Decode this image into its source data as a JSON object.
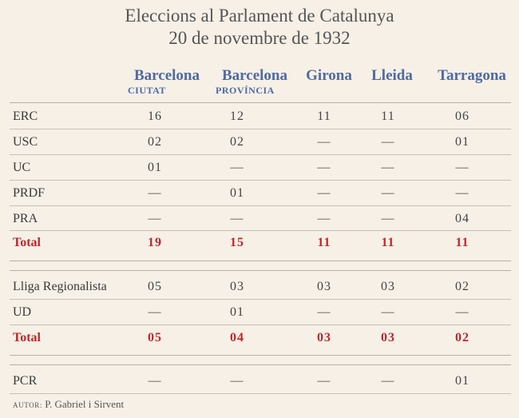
{
  "title": {
    "line1": "Eleccions al Parlament de Catalunya",
    "line2": "20 de novembre de 1932"
  },
  "columns": [
    {
      "name": "Barcelona",
      "sub": "CIUTAT"
    },
    {
      "name": "Barcelona",
      "sub": "PROVÍNCIA"
    },
    {
      "name": "Girona",
      "sub": ""
    },
    {
      "name": "Lleida",
      "sub": ""
    },
    {
      "name": "Tarragona",
      "sub": ""
    }
  ],
  "group1": {
    "rows": [
      {
        "party": "ERC",
        "values": [
          "16",
          "12",
          "11",
          "11",
          "06"
        ]
      },
      {
        "party": "USC",
        "values": [
          "02",
          "02",
          "—",
          "—",
          "01"
        ]
      },
      {
        "party": "UC",
        "values": [
          "01",
          "—",
          "—",
          "—",
          "—"
        ]
      },
      {
        "party": "PRDF",
        "values": [
          "—",
          "01",
          "—",
          "—",
          "—"
        ]
      },
      {
        "party": "PRA",
        "values": [
          "—",
          "—",
          "—",
          "—",
          "04"
        ]
      }
    ],
    "total": {
      "label": "Total",
      "values": [
        "19",
        "15",
        "11",
        "11",
        "11"
      ]
    }
  },
  "group2": {
    "rows": [
      {
        "party": "Lliga Regionalista",
        "values": [
          "05",
          "03",
          "03",
          "03",
          "02"
        ]
      },
      {
        "party": "UD",
        "values": [
          "—",
          "01",
          "—",
          "—",
          "—"
        ]
      }
    ],
    "total": {
      "label": "Total",
      "values": [
        "05",
        "04",
        "03",
        "03",
        "02"
      ]
    }
  },
  "group3": {
    "rows": [
      {
        "party": "PCR",
        "values": [
          "—",
          "—",
          "—",
          "—",
          "01"
        ]
      }
    ]
  },
  "footer": {
    "key": "AUTOR:",
    "author": "P. Gabriel i Sirvent"
  },
  "colors": {
    "background": "#f6f0e6",
    "header_blue": "#4e6aa5",
    "total_red": "#c0262b"
  }
}
